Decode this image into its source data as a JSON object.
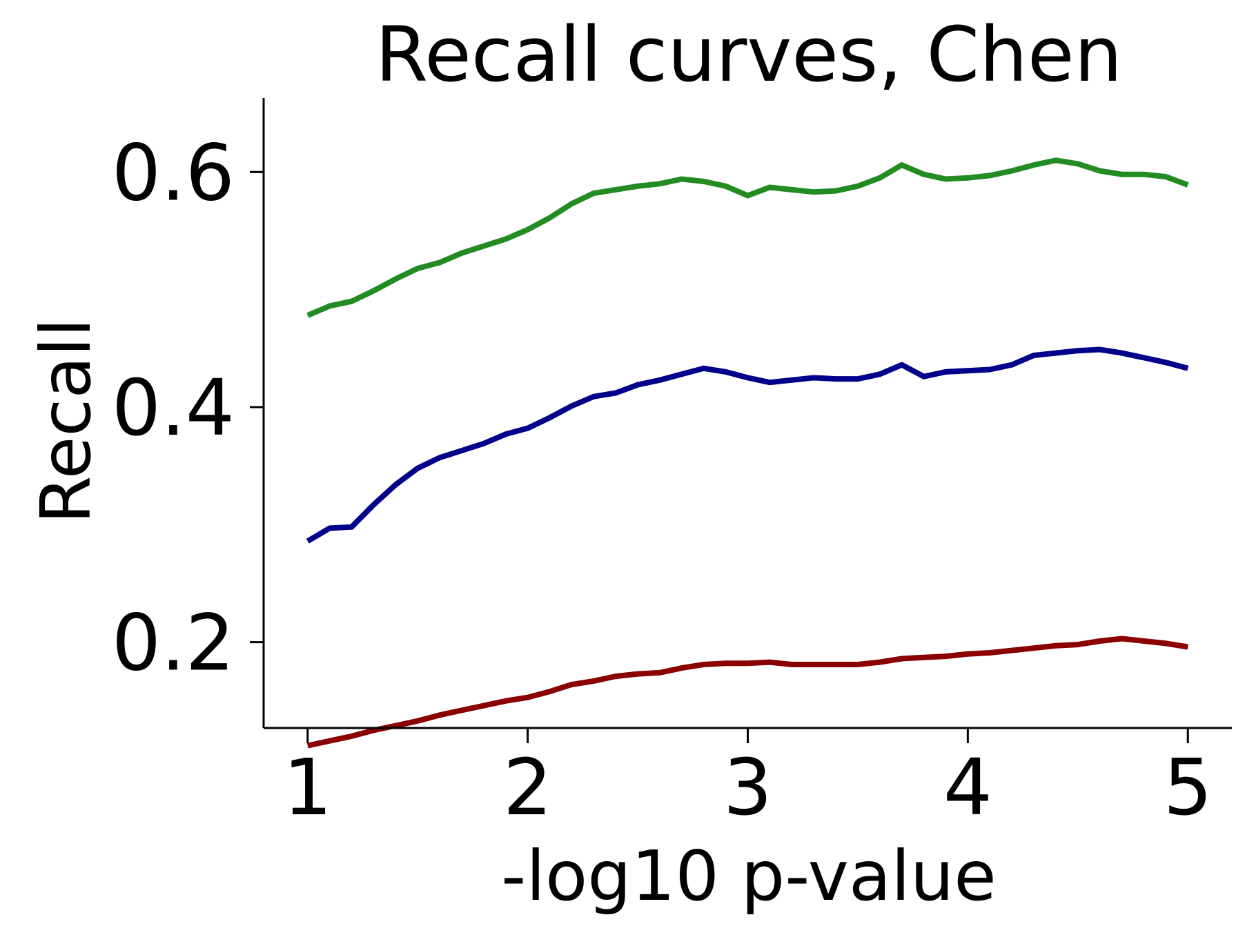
{
  "chart_data": {
    "type": "line",
    "title": "Recall curves, Chen",
    "xlabel": "-log10 p-value",
    "ylabel": "Recall",
    "xlim": [
      0.8,
      5.2
    ],
    "ylim": [
      0.127,
      0.663
    ],
    "xticks": [
      1,
      2,
      3,
      4,
      5
    ],
    "xtick_labels": [
      "1",
      "2",
      "3",
      "4",
      "5"
    ],
    "yticks": [
      0.2,
      0.4,
      0.6
    ],
    "ytick_labels": [
      "0.2",
      "0.4",
      "0.6"
    ],
    "grid": false,
    "x": [
      1.0,
      1.1,
      1.2,
      1.3,
      1.4,
      1.5,
      1.6,
      1.7,
      1.8,
      1.9,
      2.0,
      2.1,
      2.2,
      2.3,
      2.4,
      2.5,
      2.6,
      2.7,
      2.8,
      2.9,
      3.0,
      3.1,
      3.2,
      3.3,
      3.4,
      3.5,
      3.6,
      3.7,
      3.8,
      3.9,
      4.0,
      4.1,
      4.2,
      4.3,
      4.4,
      4.5,
      4.6,
      4.7,
      4.8,
      4.9,
      5.0
    ],
    "series": [
      {
        "color": "#228b22",
        "values": [
          0.478,
          0.486,
          0.49,
          0.499,
          0.509,
          0.518,
          0.523,
          0.531,
          0.537,
          0.543,
          0.551,
          0.561,
          0.573,
          0.582,
          0.585,
          0.588,
          0.59,
          0.594,
          0.592,
          0.588,
          0.58,
          0.587,
          0.585,
          0.583,
          0.584,
          0.588,
          0.595,
          0.606,
          0.598,
          0.594,
          0.595,
          0.597,
          0.601,
          0.606,
          0.61,
          0.607,
          0.601,
          0.598,
          0.598,
          0.596,
          0.589
        ]
      },
      {
        "color": "#00008b",
        "values": [
          0.286,
          0.297,
          0.298,
          0.317,
          0.334,
          0.348,
          0.357,
          0.363,
          0.369,
          0.377,
          0.382,
          0.391,
          0.401,
          0.409,
          0.412,
          0.419,
          0.423,
          0.428,
          0.433,
          0.43,
          0.425,
          0.421,
          0.423,
          0.425,
          0.424,
          0.424,
          0.428,
          0.436,
          0.426,
          0.43,
          0.431,
          0.432,
          0.436,
          0.444,
          0.446,
          0.448,
          0.449,
          0.446,
          0.442,
          0.438,
          0.433
        ]
      },
      {
        "color": "#8b0000",
        "values": [
          0.112,
          0.116,
          0.12,
          0.125,
          0.129,
          0.133,
          0.138,
          0.142,
          0.146,
          0.15,
          0.153,
          0.158,
          0.164,
          0.167,
          0.171,
          0.173,
          0.174,
          0.178,
          0.181,
          0.182,
          0.182,
          0.183,
          0.181,
          0.181,
          0.181,
          0.181,
          0.183,
          0.186,
          0.187,
          0.188,
          0.19,
          0.191,
          0.193,
          0.195,
          0.197,
          0.198,
          0.201,
          0.203,
          0.201,
          0.199,
          0.196
        ]
      }
    ]
  }
}
